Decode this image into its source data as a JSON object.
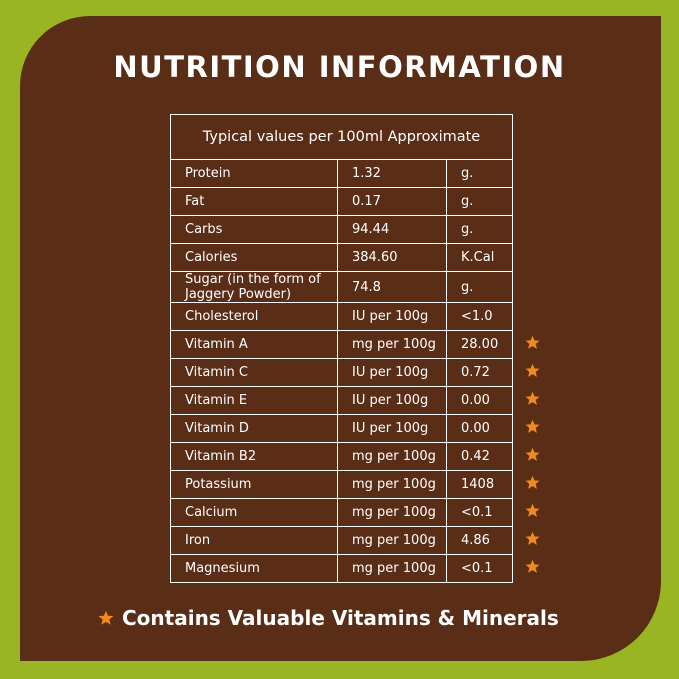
{
  "title": "NUTRITION INFORMATION",
  "table": {
    "header": "Typical values per 100ml Approximate",
    "rows": [
      {
        "cells": [
          "Protein",
          "1.32",
          "g."
        ],
        "starred": false
      },
      {
        "cells": [
          "Fat",
          "0.17",
          "g."
        ],
        "starred": false
      },
      {
        "cells": [
          "Carbs",
          "94.44",
          "g."
        ],
        "starred": false
      },
      {
        "cells": [
          "Calories",
          "384.60",
          "K.Cal"
        ],
        "starred": false
      },
      {
        "cells": [
          "Sugar (in the form of Jaggery Powder)",
          "74.8",
          "g."
        ],
        "starred": false
      },
      {
        "cells": [
          "Cholesterol",
          "IU per 100g",
          "<1.0"
        ],
        "starred": false
      },
      {
        "cells": [
          "Vitamin A",
          "mg per 100g",
          "28.00"
        ],
        "starred": true
      },
      {
        "cells": [
          "Vitamin C",
          "IU per 100g",
          "0.72"
        ],
        "starred": true
      },
      {
        "cells": [
          "Vitamin E",
          "IU per 100g",
          "0.00"
        ],
        "starred": true
      },
      {
        "cells": [
          "Vitamin D",
          "IU per 100g",
          "0.00"
        ],
        "starred": true
      },
      {
        "cells": [
          "Vitamin B2",
          "mg per 100g",
          "0.42"
        ],
        "starred": true
      },
      {
        "cells": [
          "Potassium",
          "mg per 100g",
          "1408"
        ],
        "starred": true
      },
      {
        "cells": [
          "Calcium",
          "mg per 100g",
          "<0.1"
        ],
        "starred": true
      },
      {
        "cells": [
          "Iron",
          "mg per 100g",
          "4.86"
        ],
        "starred": true
      },
      {
        "cells": [
          "Magnesium",
          "mg per 100g",
          "<0.1"
        ],
        "starred": true
      }
    ]
  },
  "footnote": "Contains Valuable Vitamins & Minerals"
}
